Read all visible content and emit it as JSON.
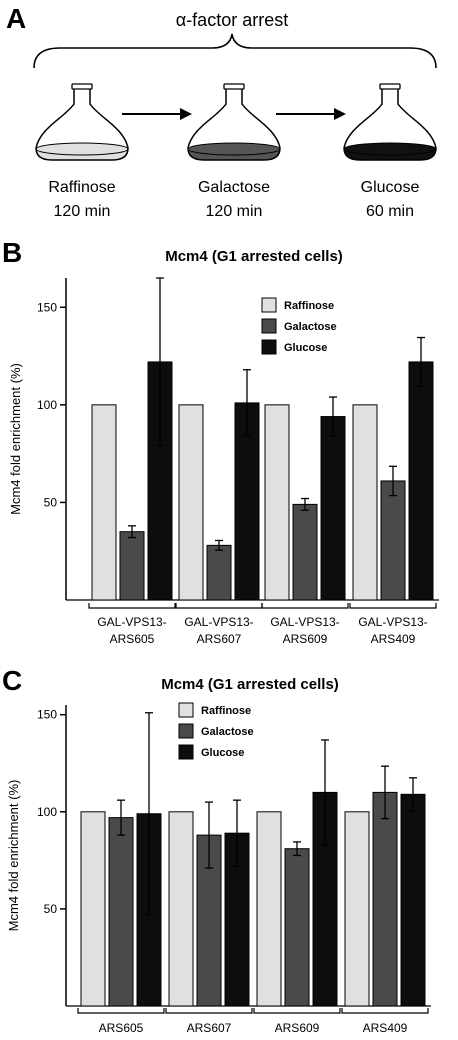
{
  "panel_a": {
    "letter": "A",
    "arrest_label": "α-factor arrest",
    "flasks": [
      {
        "medium": "Raffinose",
        "time": "120 min",
        "color": "#e0e0e0"
      },
      {
        "medium": "Galactose",
        "time": "120 min",
        "color": "#555555"
      },
      {
        "medium": "Glucose",
        "time": "60 min",
        "color": "#111111"
      }
    ]
  },
  "chart_data": [
    {
      "panel": "B",
      "type": "bar",
      "title": "Mcm4  (G1 arrested cells)",
      "ylabel": "Mcm4 fold enrichment (%)",
      "ylim": [
        0,
        165
      ],
      "yticks": [
        50,
        100,
        150
      ],
      "categories": [
        "GAL-VPS13-\nARS605",
        "GAL-VPS13-\nARS607",
        "GAL-VPS13-\nARS609",
        "GAL-VPS13-\nARS409"
      ],
      "series": [
        {
          "name": "Raffinose",
          "color": "#e0e0e0",
          "values": [
            100,
            100,
            100,
            100
          ],
          "errors": [
            0,
            0,
            0,
            0
          ]
        },
        {
          "name": "Galactose",
          "color": "#4a4a4a",
          "values": [
            35,
            28,
            49,
            61
          ],
          "errors": [
            3,
            2.5,
            3,
            7.5
          ]
        },
        {
          "name": "Glucose",
          "color": "#0d0d0d",
          "values": [
            122,
            101,
            94,
            122
          ],
          "errors": [
            43,
            17,
            10,
            12.5
          ]
        }
      ],
      "legend": "top-center"
    },
    {
      "panel": "C",
      "type": "bar",
      "title": "Mcm4 (G1 arrested cells)",
      "ylabel": "Mcm4 fold enrichment (%)",
      "ylim": [
        0,
        155
      ],
      "yticks": [
        50,
        100,
        150
      ],
      "categories": [
        "ARS605",
        "ARS607",
        "ARS609",
        "ARS409"
      ],
      "series": [
        {
          "name": "Raffinose",
          "color": "#e0e0e0",
          "values": [
            100,
            100,
            100,
            100
          ],
          "errors": [
            0,
            0,
            0,
            0
          ]
        },
        {
          "name": "Galactose",
          "color": "#4a4a4a",
          "values": [
            97,
            88,
            81,
            110
          ],
          "errors": [
            9,
            17,
            3.5,
            13.5
          ]
        },
        {
          "name": "Glucose",
          "color": "#0d0d0d",
          "values": [
            99,
            89,
            110,
            109
          ],
          "errors": [
            52,
            17,
            27,
            8.5
          ]
        }
      ],
      "legend": "top-center"
    }
  ]
}
